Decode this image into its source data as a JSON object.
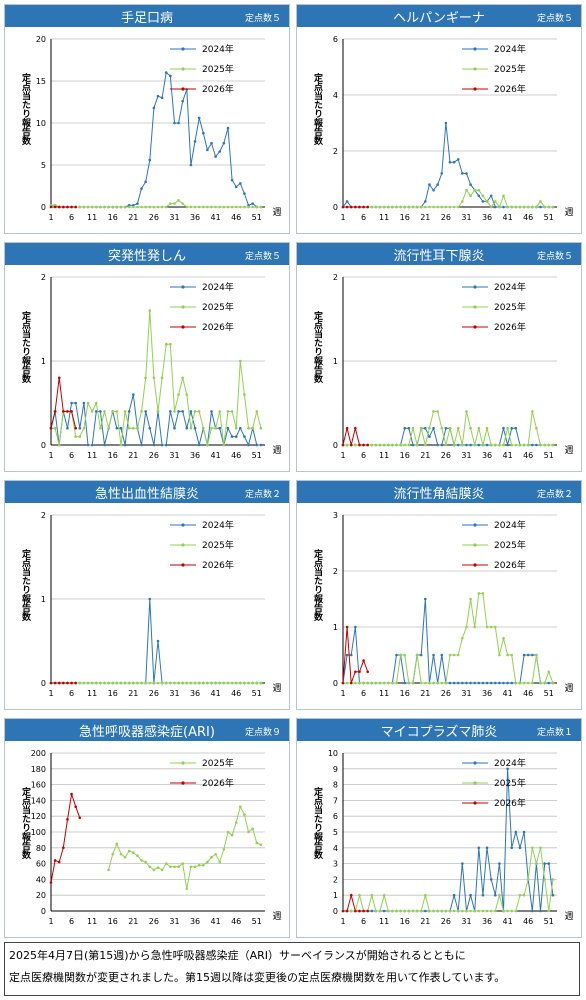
{
  "legend_colors": {
    "2024年": "#2e75b6",
    "2025年": "#92d050",
    "2026年": "#c00000"
  },
  "ylabel_common": "定点当たり報告数",
  "xunit_common": "週",
  "footnote": {
    "line1": "2025年4月7日(第15週)から急性呼吸器感染症（ARI）サーベイランスが開始されるとともに",
    "line2": "定点医療機関数が変更されました。第15週以降は変更後の定点医療機関数を用いて作表しています。"
  },
  "chart_data": [
    {
      "type": "line",
      "title": "手足口病",
      "count_label": "定点数５",
      "ylabel": "定点当たり報告数",
      "xlabel": "週",
      "xticks": [
        1,
        6,
        11,
        16,
        21,
        26,
        31,
        36,
        41,
        46,
        51
      ],
      "ylim": [
        0,
        20
      ],
      "yticks": [
        0,
        5,
        10,
        15,
        20
      ],
      "legend_position": "top-right",
      "series": [
        {
          "name": "2024年",
          "color": "#2e75b6",
          "values": [
            0.2,
            0.2,
            0,
            0,
            0,
            0,
            0,
            0,
            0,
            0,
            0,
            0,
            0,
            0,
            0,
            0,
            0,
            0,
            0,
            0.2,
            0.2,
            0.4,
            2.2,
            3,
            5.6,
            11.8,
            13.2,
            13,
            16,
            15.6,
            10,
            10,
            12.6,
            14,
            5,
            7.8,
            10.6,
            8.8,
            6.8,
            7.6,
            6,
            6.6,
            7.6,
            9.4,
            3.2,
            2.4,
            2.8,
            1.6,
            0.2,
            0.4,
            0,
            0
          ]
        },
        {
          "name": "2025年",
          "color": "#92d050",
          "values": [
            0.2,
            0.2,
            0,
            0,
            0,
            0,
            0,
            0,
            0,
            0,
            0,
            0,
            0,
            0,
            0,
            0,
            0,
            0,
            0,
            0,
            0,
            0,
            0,
            0,
            0,
            0,
            0,
            0,
            0,
            0.4,
            0.4,
            0.8,
            0.4,
            0,
            0,
            0,
            0,
            0,
            0,
            0,
            0,
            0,
            0,
            0,
            0,
            0,
            0,
            0,
            0,
            0,
            0,
            0
          ]
        },
        {
          "name": "2026年",
          "color": "#c00000",
          "values": [
            0,
            0,
            0,
            0,
            0,
            0,
            0
          ]
        }
      ]
    },
    {
      "type": "line",
      "title": "ヘルパンギーナ",
      "count_label": "定点数５",
      "ylabel": "定点当たり報告数",
      "xlabel": "週",
      "xticks": [
        1,
        6,
        11,
        16,
        21,
        26,
        31,
        36,
        41,
        46,
        51
      ],
      "ylim": [
        0,
        6
      ],
      "yticks": [
        0,
        2,
        4,
        6
      ],
      "legend_position": "top-right",
      "series": [
        {
          "name": "2024年",
          "color": "#2e75b6",
          "values": [
            0,
            0.2,
            0,
            0,
            0,
            0,
            0,
            0,
            0,
            0,
            0,
            0,
            0,
            0,
            0,
            0,
            0,
            0,
            0,
            0,
            0.2,
            0.8,
            0.6,
            0.8,
            1.2,
            3,
            1.6,
            1.6,
            1.7,
            1.2,
            1.2,
            0.8,
            0.6,
            0.4,
            0.2,
            0.2,
            0.4,
            0,
            0,
            0,
            0,
            0,
            0,
            0,
            0,
            0,
            0,
            0,
            0,
            0,
            0,
            0
          ]
        },
        {
          "name": "2025年",
          "color": "#92d050",
          "values": [
            0,
            0,
            0,
            0,
            0,
            0,
            0,
            0,
            0,
            0,
            0,
            0,
            0,
            0,
            0,
            0,
            0,
            0,
            0,
            0,
            0,
            0,
            0,
            0,
            0,
            0,
            0,
            0,
            0,
            0.2,
            0.6,
            0.4,
            0.6,
            0.6,
            0.4,
            0.2,
            0,
            0.2,
            0,
            0.4,
            0,
            0,
            0,
            0,
            0,
            0,
            0,
            0,
            0.2,
            0,
            0,
            0
          ]
        },
        {
          "name": "2026年",
          "color": "#c00000",
          "values": [
            0,
            0,
            0,
            0,
            0,
            0,
            0
          ]
        }
      ]
    },
    {
      "type": "line",
      "title": "突発性発しん",
      "count_label": "定点数５",
      "ylabel": "定点当たり報告数",
      "xlabel": "週",
      "xticks": [
        1,
        6,
        11,
        16,
        21,
        26,
        31,
        36,
        41,
        46,
        51
      ],
      "ylim": [
        0,
        2
      ],
      "yticks": [
        0,
        1,
        2
      ],
      "legend_position": "top-right",
      "series": [
        {
          "name": "2024年",
          "color": "#2e75b6",
          "values": [
            0.2,
            0.4,
            0,
            0.4,
            0.2,
            0.5,
            0.5,
            0.2,
            0.5,
            0,
            0,
            0.4,
            0.4,
            0,
            0.2,
            0.4,
            0.2,
            0.2,
            0,
            0.4,
            0.6,
            0.2,
            0,
            0.4,
            0.2,
            0,
            0.4,
            0,
            0,
            0.4,
            0.2,
            0.4,
            0.4,
            0.2,
            0.4,
            0.2,
            0,
            0.2,
            0,
            0.4,
            0.2,
            0.2,
            0,
            0.2,
            0.1,
            0.1,
            0.2,
            0.1,
            0,
            0.2,
            0,
            0
          ]
        },
        {
          "name": "2025年",
          "color": "#92d050",
          "values": [
            0.2,
            0.2,
            0,
            0.4,
            0.4,
            0.4,
            0.1,
            0.1,
            0.2,
            0.5,
            0.4,
            0.5,
            0.2,
            0.4,
            0.2,
            0.4,
            0.4,
            0,
            0.4,
            0.2,
            0.2,
            0.2,
            0.4,
            0.8,
            1.6,
            0.8,
            0.4,
            0.8,
            1.2,
            1.2,
            0.4,
            0.6,
            0.8,
            0.6,
            0.2,
            0.4,
            0.4,
            0.2,
            0,
            0.2,
            0.2,
            0.4,
            0,
            0.4,
            0.4,
            0.2,
            1,
            0.6,
            0.2,
            0.2,
            0.4,
            0.2
          ]
        },
        {
          "name": "2026年",
          "color": "#c00000",
          "values": [
            0.2,
            0.4,
            0.8,
            0.4,
            0.4,
            0.4,
            0.2
          ]
        }
      ]
    },
    {
      "type": "line",
      "title": "流行性耳下腺炎",
      "count_label": "定点数５",
      "ylabel": "定点当たり報告数",
      "xlabel": "週",
      "xticks": [
        1,
        6,
        11,
        16,
        21,
        26,
        31,
        36,
        41,
        46,
        51
      ],
      "ylim": [
        0,
        2
      ],
      "yticks": [
        0,
        1,
        2
      ],
      "legend_position": "top-right",
      "series": [
        {
          "name": "2024年",
          "color": "#2e75b6",
          "values": [
            0,
            0,
            0,
            0,
            0,
            0,
            0,
            0,
            0,
            0,
            0,
            0,
            0,
            0,
            0,
            0.2,
            0.2,
            0,
            0,
            0.2,
            0.2,
            0.1,
            0.2,
            0,
            0,
            0.2,
            0.2,
            0,
            0,
            0,
            0,
            0,
            0,
            0,
            0,
            0,
            0,
            0,
            0,
            0.2,
            0,
            0.2,
            0.2,
            0,
            0,
            0,
            0,
            0,
            0,
            0,
            0,
            0
          ]
        },
        {
          "name": "2025年",
          "color": "#92d050",
          "values": [
            0,
            0,
            0,
            0,
            0,
            0,
            0,
            0,
            0,
            0,
            0,
            0,
            0,
            0,
            0,
            0,
            0,
            0.2,
            0,
            0.2,
            0,
            0.2,
            0.4,
            0.4,
            0.2,
            0,
            0.2,
            0,
            0.2,
            0,
            0.4,
            0.2,
            0,
            0.2,
            0,
            0.2,
            0,
            0,
            0,
            0,
            0.2,
            0,
            0,
            0,
            0,
            0,
            0.4,
            0.2,
            0,
            0,
            0,
            0
          ]
        },
        {
          "name": "2026年",
          "color": "#c00000",
          "values": [
            0,
            0.2,
            0,
            0.2,
            0,
            0,
            0
          ]
        }
      ]
    },
    {
      "type": "line",
      "title": "急性出血性結膜炎",
      "count_label": "定点数２",
      "ylabel": "定点当たり報告数",
      "xlabel": "週",
      "xticks": [
        1,
        6,
        11,
        16,
        21,
        26,
        31,
        36,
        41,
        46,
        51
      ],
      "ylim": [
        0,
        2
      ],
      "yticks": [
        0,
        1,
        2
      ],
      "legend_position": "top-right",
      "series": [
        {
          "name": "2024年",
          "color": "#2e75b6",
          "values": [
            0,
            0,
            0,
            0,
            0,
            0,
            0,
            0,
            0,
            0,
            0,
            0,
            0,
            0,
            0,
            0,
            0,
            0,
            0,
            0,
            0,
            0,
            0,
            0,
            1,
            0,
            0.5,
            0,
            0,
            0,
            0,
            0,
            0,
            0,
            0,
            0,
            0,
            0,
            0,
            0,
            0,
            0,
            0,
            0,
            0,
            0,
            0,
            0,
            0,
            0,
            0,
            0
          ]
        },
        {
          "name": "2025年",
          "color": "#92d050",
          "values": [
            0,
            0,
            0,
            0,
            0,
            0,
            0,
            0,
            0,
            0,
            0,
            0,
            0,
            0,
            0,
            0,
            0,
            0,
            0,
            0,
            0,
            0,
            0,
            0,
            0,
            0,
            0,
            0,
            0,
            0,
            0,
            0,
            0,
            0,
            0,
            0,
            0,
            0,
            0,
            0,
            0,
            0,
            0,
            0,
            0,
            0,
            0,
            0,
            0,
            0,
            0,
            0
          ]
        },
        {
          "name": "2026年",
          "color": "#c00000",
          "values": [
            0,
            0,
            0,
            0,
            0,
            0,
            0
          ]
        }
      ]
    },
    {
      "type": "line",
      "title": "流行性角結膜炎",
      "count_label": "定点数２",
      "ylabel": "定点当たり報告数",
      "xlabel": "週",
      "xticks": [
        1,
        6,
        11,
        16,
        21,
        26,
        31,
        36,
        41,
        46,
        51
      ],
      "ylim": [
        0,
        3
      ],
      "yticks": [
        0,
        1,
        2,
        3
      ],
      "legend_position": "top-right",
      "series": [
        {
          "name": "2024年",
          "color": "#2e75b6",
          "values": [
            0,
            0.5,
            0.5,
            1,
            0,
            0,
            0,
            0,
            0,
            0,
            0,
            0,
            0,
            0.5,
            0.5,
            0,
            0,
            0,
            0.5,
            0.5,
            1.5,
            0,
            0.5,
            0,
            0.5,
            0,
            0,
            0,
            0,
            0,
            0,
            0,
            0,
            0,
            0,
            0,
            0,
            0,
            0,
            0,
            0,
            0,
            0,
            0,
            0.5,
            0.5,
            0.5,
            0.5,
            0,
            0,
            0,
            0
          ]
        },
        {
          "name": "2025年",
          "color": "#92d050",
          "values": [
            0,
            0,
            0,
            0,
            0,
            0,
            0,
            0,
            0,
            0,
            0,
            0,
            0,
            0,
            0.5,
            0.5,
            0,
            0,
            0.5,
            0,
            0,
            0,
            0,
            0,
            0,
            0,
            0.5,
            0.5,
            0.5,
            0.8,
            1,
            1.5,
            1,
            1.6,
            1.6,
            1,
            1,
            1,
            0.5,
            0.8,
            0.5,
            0.5,
            0,
            0,
            0,
            0,
            0,
            0.5,
            0,
            0,
            0.2,
            0
          ]
        },
        {
          "name": "2026年",
          "color": "#c00000",
          "values": [
            0,
            1,
            0,
            0.2,
            0.2,
            0.4,
            0.2
          ]
        }
      ]
    },
    {
      "type": "line",
      "title": "急性呼吸器感染症(ARI)",
      "count_label": "定点数９",
      "ylabel": "定点当たり報告数",
      "xlabel": "週",
      "xticks": [
        1,
        6,
        11,
        16,
        21,
        26,
        31,
        36,
        41,
        46,
        51
      ],
      "ylim": [
        0,
        200
      ],
      "yticks": [
        0,
        20,
        40,
        60,
        80,
        100,
        120,
        140,
        160,
        180,
        200
      ],
      "legend_position": "top-right",
      "series": [
        {
          "name": "2025年",
          "color": "#92d050",
          "values": [
            null,
            null,
            null,
            null,
            null,
            null,
            null,
            null,
            null,
            null,
            null,
            null,
            null,
            null,
            52,
            72,
            85,
            72,
            68,
            76,
            74,
            70,
            64,
            62,
            56,
            52,
            55,
            52,
            60,
            56,
            56,
            56,
            60,
            28,
            56,
            56,
            58,
            58,
            62,
            68,
            72,
            62,
            78,
            100,
            96,
            112,
            132,
            122,
            100,
            104,
            86,
            84
          ]
        },
        {
          "name": "2026年",
          "color": "#c00000",
          "values": [
            36,
            64,
            62,
            80,
            116,
            148,
            132,
            118
          ]
        }
      ]
    },
    {
      "type": "line",
      "title": "マイコプラズマ肺炎",
      "count_label": "定点数１",
      "ylabel": "定点当たり報告数",
      "xlabel": "週",
      "xticks": [
        1,
        6,
        11,
        16,
        21,
        26,
        31,
        36,
        41,
        46,
        51
      ],
      "ylim": [
        0,
        10
      ],
      "yticks": [
        0,
        1,
        2,
        3,
        4,
        5,
        6,
        7,
        8,
        9,
        10
      ],
      "legend_position": "top-right",
      "series": [
        {
          "name": "2024年",
          "color": "#2e75b6",
          "values": [
            0,
            0,
            0,
            0,
            0,
            0,
            0,
            0,
            0,
            0,
            0,
            0,
            0,
            0,
            0,
            0,
            0,
            0,
            0,
            0,
            0,
            0,
            0,
            0,
            0,
            0,
            0,
            1,
            0,
            3,
            0,
            1,
            0,
            4,
            1,
            4,
            2,
            1,
            3,
            0,
            9,
            4,
            5,
            4,
            5,
            2,
            0,
            3,
            0,
            3,
            3,
            1
          ]
        },
        {
          "name": "2025年",
          "color": "#92d050",
          "values": [
            0,
            0,
            0,
            0,
            1,
            0,
            0,
            1,
            0,
            0,
            1,
            0,
            0,
            0,
            0,
            0,
            0,
            0,
            0,
            0,
            1,
            0,
            0,
            0,
            0,
            0,
            0,
            0,
            0,
            0,
            0,
            0,
            0,
            0,
            0,
            0,
            0,
            0,
            1,
            0,
            0,
            0,
            0,
            1,
            1,
            2,
            4,
            3,
            4,
            2,
            0,
            2
          ]
        },
        {
          "name": "2026年",
          "color": "#c00000",
          "values": [
            0,
            0,
            1,
            0,
            0,
            0,
            0
          ]
        }
      ]
    }
  ]
}
